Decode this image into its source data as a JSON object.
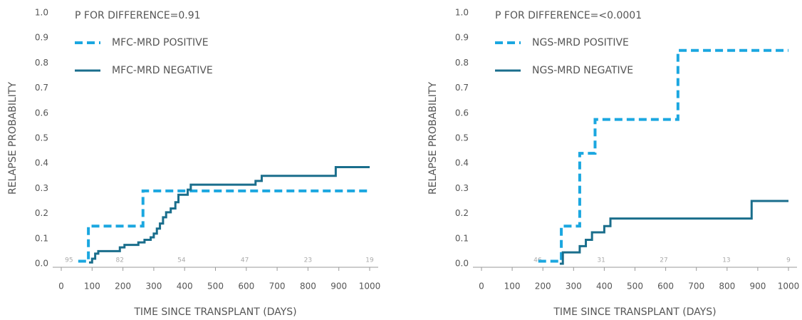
{
  "chart_data": [
    {
      "type": "line",
      "step": true,
      "annotation": "P FOR DIFFERENCE=0.91",
      "xlabel": "TIME SINCE TRANSPLANT (DAYS)",
      "ylabel": "RELAPSE PROBABILITY",
      "xlim": [
        0,
        1000
      ],
      "ylim": [
        0,
        1
      ],
      "xticks": [
        0,
        100,
        200,
        300,
        400,
        500,
        600,
        700,
        800,
        900,
        1000
      ],
      "yticks": [
        {
          "value": 0,
          "label": "0.0"
        },
        0.1,
        0.2,
        0.3,
        0.4,
        0.5,
        0.6,
        0.7,
        0.8,
        0.9,
        {
          "value": 1,
          "label": "1.0"
        }
      ],
      "series": [
        {
          "name": "MFC-MRD POSITIVE",
          "color": "#1ba7e0",
          "dashed": true,
          "x": [
            55,
            88,
            265,
            1000
          ],
          "values": [
            0.01,
            0.15,
            0.29,
            0.29
          ]
        },
        {
          "name": "MFC-MRD NEGATIVE",
          "color": "#1a6e8c",
          "dashed": false,
          "x": [
            90,
            100,
            110,
            120,
            190,
            205,
            250,
            270,
            290,
            300,
            310,
            320,
            330,
            340,
            355,
            370,
            380,
            410,
            420,
            630,
            650,
            890,
            1000
          ],
          "values": [
            0.005,
            0.02,
            0.04,
            0.05,
            0.065,
            0.075,
            0.085,
            0.095,
            0.105,
            0.12,
            0.14,
            0.16,
            0.185,
            0.205,
            0.22,
            0.245,
            0.275,
            0.295,
            0.315,
            0.33,
            0.35,
            0.385,
            0.385
          ]
        }
      ],
      "at_risk": {
        "x": [
          25,
          190,
          390,
          595,
          800,
          1000
        ],
        "values": [
          95,
          82,
          54,
          47,
          23,
          19
        ]
      }
    },
    {
      "type": "line",
      "step": true,
      "annotation": "P FOR DIFFERENCE=<0.0001",
      "xlabel": "TIME SINCE TRANSPLANT (DAYS)",
      "ylabel": "RELAPSE PROBABILITY",
      "xlim": [
        0,
        1000
      ],
      "ylim": [
        0,
        1
      ],
      "xticks": [
        0,
        100,
        200,
        300,
        400,
        500,
        600,
        700,
        800,
        900,
        1000
      ],
      "yticks": [
        {
          "value": 0,
          "label": "0.0"
        },
        0.1,
        0.2,
        0.3,
        0.4,
        0.5,
        0.6,
        0.7,
        0.8,
        0.9,
        {
          "value": 1,
          "label": "1.0"
        }
      ],
      "series": [
        {
          "name": "NGS-MRD POSITIVE",
          "color": "#1ba7e0",
          "dashed": true,
          "x": [
            185,
            260,
            320,
            370,
            640,
            1000
          ],
          "values": [
            0.01,
            0.15,
            0.44,
            0.575,
            0.85,
            0.85
          ]
        },
        {
          "name": "NGS-MRD NEGATIVE",
          "color": "#1a6e8c",
          "dashed": false,
          "x": [
            255,
            265,
            320,
            340,
            360,
            400,
            420,
            880,
            1000
          ],
          "values": [
            0,
            0.045,
            0.07,
            0.095,
            0.125,
            0.15,
            0.18,
            0.25,
            0.25
          ]
        }
      ],
      "at_risk": {
        "x": [
          183,
          390,
          594,
          798,
          1000
        ],
        "values": [
          46,
          31,
          27,
          13,
          9
        ]
      }
    }
  ]
}
